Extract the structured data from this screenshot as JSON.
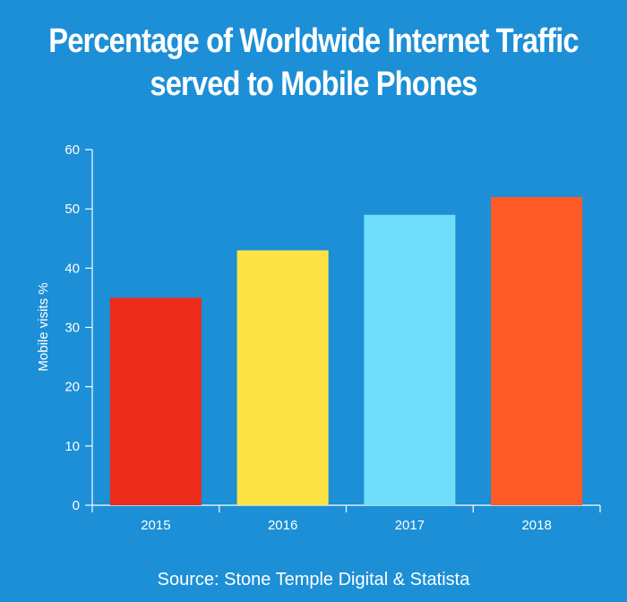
{
  "chart_data": {
    "type": "bar",
    "title_lines": [
      "Percentage of Worldwide Internet Traffic",
      "served to Mobile Phones"
    ],
    "categories": [
      "2015",
      "2016",
      "2017",
      "2018"
    ],
    "values": [
      35,
      43,
      49,
      52
    ],
    "bar_colors": [
      "#ec2b1b",
      "#fde444",
      "#6fdefb",
      "#fe5a28"
    ],
    "xlabel": "",
    "ylabel": "Mobile visits %",
    "ylim": [
      0,
      60
    ],
    "yticks": [
      0,
      10,
      20,
      30,
      40,
      50,
      60
    ],
    "grid": false,
    "legend": "none",
    "source": "Source: Stone Temple Digital & Statista"
  },
  "colors": {
    "background": "#1c8fd6",
    "text": "#ffffff",
    "axis": "#ffffff"
  }
}
